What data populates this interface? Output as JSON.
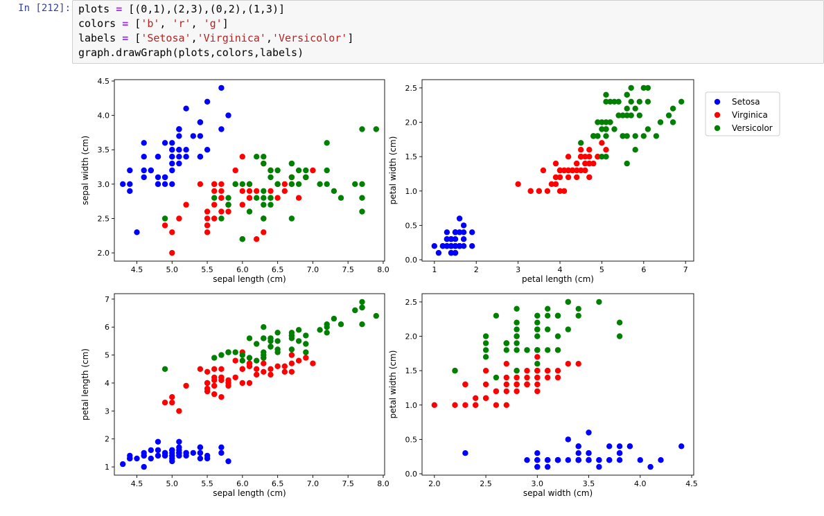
{
  "notebook": {
    "prompt": "In [212]:",
    "code": {
      "line1": {
        "var": "plots",
        "op": "=",
        "value": "[(0,1),(2,3),(0,2),(1,3)]"
      },
      "line2": {
        "var": "colors",
        "op": "=",
        "open": "[",
        "items": [
          "'b'",
          "'r'",
          "'g'"
        ],
        "sep": ", ",
        "close": "]"
      },
      "line3": {
        "var": "labels",
        "op": "=",
        "open": "[",
        "items": [
          "'Setosa'",
          "'Virginica'",
          "'Versicolor'"
        ],
        "sep": ",",
        "close": "]"
      },
      "line4": "graph.drawGraph(plots,colors,labels)"
    }
  },
  "colors": {
    "Setosa": "#0000ff",
    "Virginica": "#ff0000",
    "Versicolor": "#008000"
  },
  "legend": {
    "position": "upper-right-outside",
    "entries": [
      "Setosa",
      "Virginica",
      "Versicolor"
    ]
  },
  "features": [
    "sepal length (cm)",
    "sepal width (cm)",
    "petal length (cm)",
    "petal width (cm)"
  ],
  "iris_samples": [
    [
      5.1,
      3.5,
      1.4,
      0.2,
      0
    ],
    [
      4.9,
      3.0,
      1.4,
      0.2,
      0
    ],
    [
      4.7,
      3.2,
      1.3,
      0.2,
      0
    ],
    [
      4.6,
      3.1,
      1.5,
      0.2,
      0
    ],
    [
      5.0,
      3.6,
      1.4,
      0.2,
      0
    ],
    [
      5.4,
      3.9,
      1.7,
      0.4,
      0
    ],
    [
      4.6,
      3.4,
      1.4,
      0.3,
      0
    ],
    [
      5.0,
      3.4,
      1.5,
      0.2,
      0
    ],
    [
      4.4,
      2.9,
      1.4,
      0.2,
      0
    ],
    [
      4.9,
      3.1,
      1.5,
      0.1,
      0
    ],
    [
      5.4,
      3.7,
      1.5,
      0.2,
      0
    ],
    [
      4.8,
      3.4,
      1.6,
      0.2,
      0
    ],
    [
      4.8,
      3.0,
      1.4,
      0.1,
      0
    ],
    [
      4.3,
      3.0,
      1.1,
      0.1,
      0
    ],
    [
      5.8,
      4.0,
      1.2,
      0.2,
      0
    ],
    [
      5.7,
      4.4,
      1.5,
      0.4,
      0
    ],
    [
      5.4,
      3.9,
      1.3,
      0.4,
      0
    ],
    [
      5.1,
      3.5,
      1.4,
      0.3,
      0
    ],
    [
      5.7,
      3.8,
      1.7,
      0.3,
      0
    ],
    [
      5.1,
      3.8,
      1.5,
      0.3,
      0
    ],
    [
      5.4,
      3.4,
      1.7,
      0.2,
      0
    ],
    [
      5.1,
      3.7,
      1.5,
      0.4,
      0
    ],
    [
      4.6,
      3.6,
      1.0,
      0.2,
      0
    ],
    [
      5.1,
      3.3,
      1.7,
      0.5,
      0
    ],
    [
      4.8,
      3.4,
      1.9,
      0.2,
      0
    ],
    [
      5.0,
      3.0,
      1.6,
      0.2,
      0
    ],
    [
      5.0,
      3.4,
      1.6,
      0.4,
      0
    ],
    [
      5.2,
      3.5,
      1.5,
      0.2,
      0
    ],
    [
      5.2,
      3.4,
      1.4,
      0.2,
      0
    ],
    [
      4.7,
      3.2,
      1.6,
      0.2,
      0
    ],
    [
      4.8,
      3.1,
      1.6,
      0.2,
      0
    ],
    [
      5.4,
      3.4,
      1.5,
      0.4,
      0
    ],
    [
      5.2,
      4.1,
      1.5,
      0.1,
      0
    ],
    [
      5.5,
      4.2,
      1.4,
      0.2,
      0
    ],
    [
      4.9,
      3.1,
      1.5,
      0.2,
      0
    ],
    [
      5.0,
      3.2,
      1.2,
      0.2,
      0
    ],
    [
      5.5,
      3.5,
      1.3,
      0.2,
      0
    ],
    [
      4.9,
      3.6,
      1.4,
      0.1,
      0
    ],
    [
      4.4,
      3.0,
      1.3,
      0.2,
      0
    ],
    [
      5.1,
      3.4,
      1.5,
      0.2,
      0
    ],
    [
      5.0,
      3.5,
      1.3,
      0.3,
      0
    ],
    [
      4.5,
      2.3,
      1.3,
      0.3,
      0
    ],
    [
      4.4,
      3.2,
      1.3,
      0.2,
      0
    ],
    [
      5.0,
      3.5,
      1.6,
      0.6,
      0
    ],
    [
      5.1,
      3.8,
      1.9,
      0.4,
      0
    ],
    [
      4.8,
      3.0,
      1.4,
      0.3,
      0
    ],
    [
      5.1,
      3.8,
      1.6,
      0.2,
      0
    ],
    [
      4.6,
      3.2,
      1.4,
      0.2,
      0
    ],
    [
      5.3,
      3.7,
      1.5,
      0.2,
      0
    ],
    [
      5.0,
      3.3,
      1.4,
      0.2,
      0
    ],
    [
      7.0,
      3.2,
      4.7,
      1.4,
      1
    ],
    [
      6.4,
      3.2,
      4.5,
      1.5,
      1
    ],
    [
      6.9,
      3.1,
      4.9,
      1.5,
      1
    ],
    [
      5.5,
      2.3,
      4.0,
      1.3,
      1
    ],
    [
      6.5,
      2.8,
      4.6,
      1.5,
      1
    ],
    [
      5.7,
      2.8,
      4.5,
      1.3,
      1
    ],
    [
      6.3,
      3.3,
      4.7,
      1.6,
      1
    ],
    [
      4.9,
      2.4,
      3.3,
      1.0,
      1
    ],
    [
      6.6,
      2.9,
      4.6,
      1.3,
      1
    ],
    [
      5.2,
      2.7,
      3.9,
      1.4,
      1
    ],
    [
      5.0,
      2.0,
      3.5,
      1.0,
      1
    ],
    [
      5.9,
      3.0,
      4.2,
      1.5,
      1
    ],
    [
      6.0,
      2.2,
      4.0,
      1.0,
      1
    ],
    [
      6.1,
      2.9,
      4.7,
      1.4,
      1
    ],
    [
      5.6,
      2.9,
      3.6,
      1.3,
      1
    ],
    [
      6.7,
      3.1,
      4.4,
      1.4,
      1
    ],
    [
      5.6,
      3.0,
      4.5,
      1.5,
      1
    ],
    [
      5.8,
      2.7,
      4.1,
      1.0,
      1
    ],
    [
      6.2,
      2.2,
      4.5,
      1.5,
      1
    ],
    [
      5.6,
      2.5,
      3.9,
      1.1,
      1
    ],
    [
      5.9,
      3.2,
      4.8,
      1.8,
      1
    ],
    [
      6.1,
      2.8,
      4.0,
      1.3,
      1
    ],
    [
      6.3,
      2.5,
      4.9,
      1.5,
      1
    ],
    [
      6.1,
      2.8,
      4.7,
      1.2,
      1
    ],
    [
      6.4,
      2.9,
      4.3,
      1.3,
      1
    ],
    [
      6.6,
      3.0,
      4.4,
      1.4,
      1
    ],
    [
      6.8,
      2.8,
      4.8,
      1.4,
      1
    ],
    [
      6.7,
      3.0,
      5.0,
      1.7,
      1
    ],
    [
      6.0,
      2.9,
      4.5,
      1.5,
      1
    ],
    [
      5.7,
      2.6,
      3.5,
      1.0,
      1
    ],
    [
      5.5,
      2.4,
      3.8,
      1.1,
      1
    ],
    [
      5.5,
      2.4,
      3.7,
      1.0,
      1
    ],
    [
      5.8,
      2.7,
      3.9,
      1.2,
      1
    ],
    [
      6.0,
      2.7,
      5.1,
      1.6,
      1
    ],
    [
      5.4,
      3.0,
      4.5,
      1.5,
      1
    ],
    [
      6.0,
      3.4,
      4.5,
      1.6,
      1
    ],
    [
      6.7,
      3.1,
      4.7,
      1.5,
      1
    ],
    [
      6.3,
      2.3,
      4.4,
      1.3,
      1
    ],
    [
      5.6,
      3.0,
      4.1,
      1.3,
      1
    ],
    [
      5.5,
      2.5,
      4.0,
      1.3,
      1
    ],
    [
      5.5,
      2.6,
      4.4,
      1.2,
      1
    ],
    [
      6.1,
      3.0,
      4.6,
      1.4,
      1
    ],
    [
      5.8,
      2.6,
      4.0,
      1.2,
      1
    ],
    [
      5.0,
      2.3,
      3.3,
      1.0,
      1
    ],
    [
      5.6,
      2.7,
      4.2,
      1.3,
      1
    ],
    [
      5.7,
      3.0,
      4.2,
      1.2,
      1
    ],
    [
      5.7,
      2.9,
      4.2,
      1.3,
      1
    ],
    [
      6.2,
      2.9,
      4.3,
      1.3,
      1
    ],
    [
      5.1,
      2.5,
      3.0,
      1.1,
      1
    ],
    [
      5.7,
      2.8,
      4.1,
      1.3,
      1
    ],
    [
      6.3,
      3.3,
      6.0,
      2.5,
      2
    ],
    [
      5.8,
      2.7,
      5.1,
      1.9,
      2
    ],
    [
      7.1,
      3.0,
      5.9,
      2.1,
      2
    ],
    [
      6.3,
      2.9,
      5.6,
      1.8,
      2
    ],
    [
      6.5,
      3.0,
      5.8,
      2.2,
      2
    ],
    [
      7.6,
      3.0,
      6.6,
      2.1,
      2
    ],
    [
      4.9,
      2.5,
      4.5,
      1.7,
      2
    ],
    [
      7.3,
      2.9,
      6.3,
      1.8,
      2
    ],
    [
      6.7,
      2.5,
      5.8,
      1.8,
      2
    ],
    [
      7.2,
      3.6,
      6.1,
      2.5,
      2
    ],
    [
      6.5,
      3.2,
      5.1,
      2.0,
      2
    ],
    [
      6.4,
      2.7,
      5.3,
      1.9,
      2
    ],
    [
      6.8,
      3.0,
      5.5,
      2.1,
      2
    ],
    [
      5.7,
      2.5,
      5.0,
      2.0,
      2
    ],
    [
      5.8,
      2.8,
      5.1,
      2.4,
      2
    ],
    [
      6.4,
      3.2,
      5.3,
      2.3,
      2
    ],
    [
      6.5,
      3.0,
      5.5,
      1.8,
      2
    ],
    [
      7.7,
      3.8,
      6.7,
      2.2,
      2
    ],
    [
      7.7,
      2.6,
      6.9,
      2.3,
      2
    ],
    [
      6.0,
      2.2,
      5.0,
      1.5,
      2
    ],
    [
      6.9,
      3.2,
      5.7,
      2.3,
      2
    ],
    [
      5.6,
      2.8,
      4.9,
      2.0,
      2
    ],
    [
      7.7,
      2.8,
      6.7,
      2.0,
      2
    ],
    [
      6.3,
      2.7,
      4.9,
      1.8,
      2
    ],
    [
      6.7,
      3.3,
      5.7,
      2.1,
      2
    ],
    [
      7.2,
      3.2,
      6.0,
      1.8,
      2
    ],
    [
      6.2,
      2.8,
      4.8,
      1.8,
      2
    ],
    [
      6.1,
      3.0,
      4.9,
      1.8,
      2
    ],
    [
      6.4,
      2.8,
      5.6,
      2.1,
      2
    ],
    [
      7.2,
      3.0,
      5.8,
      1.6,
      2
    ],
    [
      7.4,
      2.8,
      6.1,
      1.9,
      2
    ],
    [
      7.9,
      3.8,
      6.4,
      2.0,
      2
    ],
    [
      6.4,
      2.8,
      5.6,
      2.2,
      2
    ],
    [
      6.3,
      2.8,
      5.1,
      1.5,
      2
    ],
    [
      6.1,
      2.6,
      5.6,
      1.4,
      2
    ],
    [
      7.7,
      3.0,
      6.1,
      2.3,
      2
    ],
    [
      6.3,
      3.4,
      5.6,
      2.4,
      2
    ],
    [
      6.4,
      3.1,
      5.5,
      1.8,
      2
    ],
    [
      6.0,
      3.0,
      4.8,
      1.8,
      2
    ],
    [
      6.9,
      3.1,
      5.4,
      2.1,
      2
    ],
    [
      6.7,
      3.1,
      5.6,
      2.4,
      2
    ],
    [
      6.9,
      3.1,
      5.1,
      2.3,
      2
    ],
    [
      5.8,
      2.7,
      5.1,
      1.9,
      2
    ],
    [
      6.8,
      3.2,
      5.9,
      2.3,
      2
    ],
    [
      6.7,
      3.3,
      5.7,
      2.5,
      2
    ],
    [
      6.7,
      3.0,
      5.2,
      2.3,
      2
    ],
    [
      6.3,
      2.5,
      5.0,
      1.9,
      2
    ],
    [
      6.5,
      3.0,
      5.2,
      2.0,
      2
    ],
    [
      6.2,
      3.4,
      5.4,
      2.3,
      2
    ],
    [
      5.9,
      3.0,
      5.1,
      1.8,
      2
    ]
  ],
  "chart_data": [
    {
      "type": "scatter",
      "title": "",
      "x_feature": 0,
      "y_feature": 1,
      "xlabel": "sepal length (cm)",
      "ylabel": "sepal width (cm)",
      "xlim": [
        4.18,
        8.02
      ],
      "ylim": [
        1.88,
        4.52
      ],
      "xticks": [
        4.5,
        5.0,
        5.5,
        6.0,
        6.5,
        7.0,
        7.5,
        8.0
      ],
      "xtick_labels": [
        "4.5",
        "5.0",
        "5.5",
        "6.0",
        "6.5",
        "7.0",
        "7.5",
        "8.0"
      ],
      "yticks": [
        2.0,
        2.5,
        3.0,
        3.5,
        4.0,
        4.5
      ],
      "ytick_labels": [
        "2.0",
        "2.5",
        "3.0",
        "3.5",
        "4.0",
        "4.5"
      ],
      "legend": false
    },
    {
      "type": "scatter",
      "title": "",
      "x_feature": 2,
      "y_feature": 3,
      "xlabel": "petal length (cm)",
      "ylabel": "petal width (cm)",
      "xlim": [
        0.705,
        7.195
      ],
      "ylim": [
        -0.02,
        2.62
      ],
      "xticks": [
        1,
        2,
        3,
        4,
        5,
        6,
        7
      ],
      "xtick_labels": [
        "1",
        "2",
        "3",
        "4",
        "5",
        "6",
        "7"
      ],
      "yticks": [
        0,
        0.5,
        1.0,
        1.5,
        2.0,
        2.5
      ],
      "ytick_labels": [
        "0.0",
        "0.5",
        "1.0",
        "1.5",
        "2.0",
        "2.5"
      ],
      "legend": true
    },
    {
      "type": "scatter",
      "title": "",
      "x_feature": 0,
      "y_feature": 2,
      "xlabel": "sepal length (cm)",
      "ylabel": "petal length (cm)",
      "xlim": [
        4.18,
        8.02
      ],
      "ylim": [
        0.705,
        7.195
      ],
      "xticks": [
        4.5,
        5.0,
        5.5,
        6.0,
        6.5,
        7.0,
        7.5,
        8.0
      ],
      "xtick_labels": [
        "4.5",
        "5.0",
        "5.5",
        "6.0",
        "6.5",
        "7.0",
        "7.5",
        "8.0"
      ],
      "yticks": [
        1,
        2,
        3,
        4,
        5,
        6,
        7
      ],
      "ytick_labels": [
        "1",
        "2",
        "3",
        "4",
        "5",
        "6",
        "7"
      ],
      "legend": false
    },
    {
      "type": "scatter",
      "title": "",
      "x_feature": 1,
      "y_feature": 3,
      "xlabel": "sepal width (cm)",
      "ylabel": "petal width (cm)",
      "xlim": [
        1.88,
        4.52
      ],
      "ylim": [
        -0.02,
        2.62
      ],
      "xticks": [
        2.0,
        2.5,
        3.0,
        3.5,
        4.0,
        4.5
      ],
      "xtick_labels": [
        "2.0",
        "2.5",
        "3.0",
        "3.5",
        "4.0",
        "4.5"
      ],
      "yticks": [
        0,
        0.5,
        1.0,
        1.5,
        2.0,
        2.5
      ],
      "ytick_labels": [
        "0.0",
        "0.5",
        "1.0",
        "1.5",
        "2.0",
        "2.5"
      ],
      "legend": false
    }
  ]
}
